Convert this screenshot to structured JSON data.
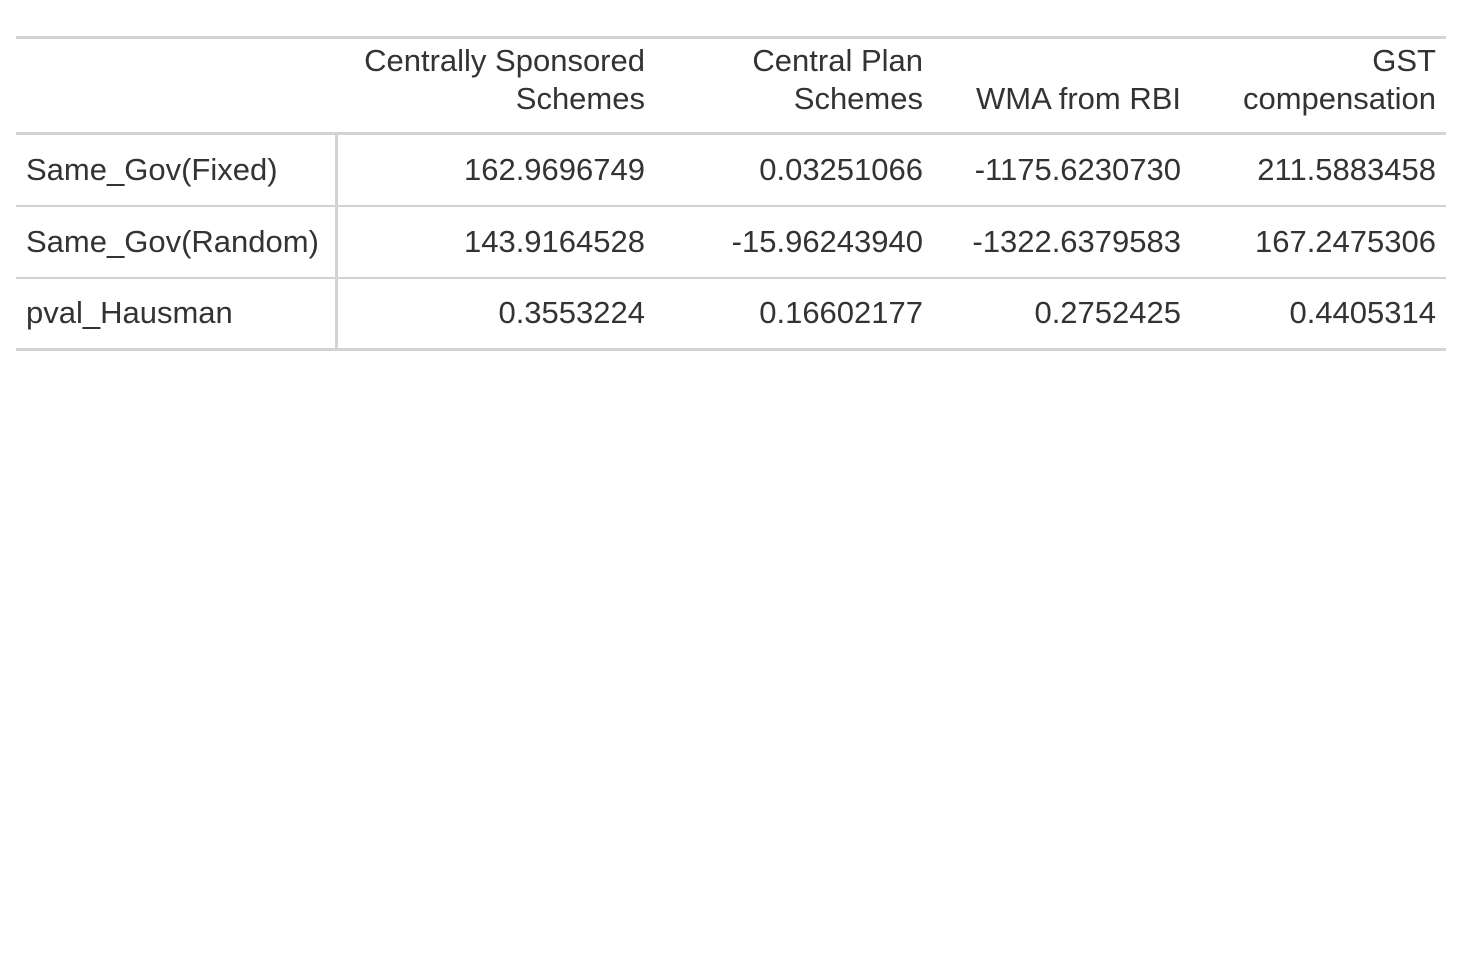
{
  "table": {
    "stub_header": "",
    "columns": [
      [
        "Centrally Sponsored",
        "Schemes"
      ],
      [
        "Central Plan",
        "Schemes"
      ],
      [
        "WMA from RBI"
      ],
      [
        "GST",
        "compensation"
      ]
    ],
    "rows": [
      {
        "label": "Same_Gov(Fixed)",
        "values": [
          "162.9696749",
          "0.03251066",
          "-1175.6230730",
          "211.5883458"
        ]
      },
      {
        "label": "Same_Gov(Random)",
        "values": [
          "143.9164528",
          "-15.96243940",
          "-1322.6379583",
          "167.2475306"
        ]
      },
      {
        "label": "pval_Hausman",
        "values": [
          "0.3553224",
          "0.16602177",
          "0.2752425",
          "0.4405314"
        ]
      }
    ]
  }
}
